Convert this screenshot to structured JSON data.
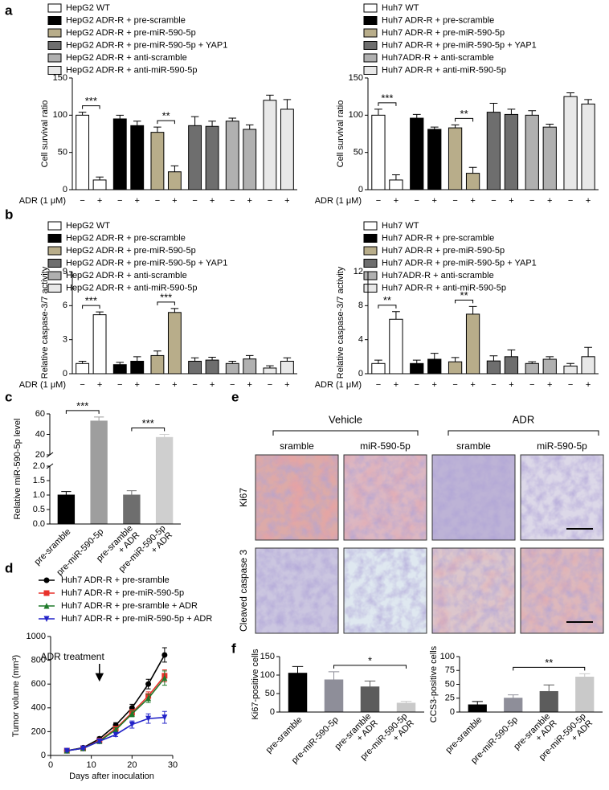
{
  "panel_labels": [
    "a",
    "b",
    "c",
    "d",
    "e",
    "f"
  ],
  "chart_data": [
    {
      "type": "bar",
      "y_label": "Cell survival ratio",
      "x_row_label": "ADR (1 μM)",
      "categories": [
        "−",
        "+"
      ],
      "ylim": [
        0,
        150
      ],
      "yticks": [
        0,
        50,
        100,
        150
      ],
      "series": [
        {
          "name": "HepG2 WT",
          "color": "#ffffff",
          "values": [
            100,
            13
          ],
          "errors": [
            4,
            4
          ]
        },
        {
          "name": "HepG2 ADR-R + pre-scramble",
          "color": "#000000",
          "values": [
            95,
            86
          ],
          "errors": [
            5,
            6
          ]
        },
        {
          "name": "HepG2 ADR-R + pre-miR-590-5p",
          "color": "#b8ad8a",
          "values": [
            77,
            24
          ],
          "errors": [
            7,
            8
          ]
        },
        {
          "name": "HepG2 ADR-R + pre-miR-590-5p + YAP1",
          "color": "#6e6e6e",
          "values": [
            86,
            85
          ],
          "errors": [
            12,
            7
          ]
        },
        {
          "name": "HepG2 ADR-R + anti-scramble",
          "color": "#b0b0b0",
          "values": [
            92,
            81
          ],
          "errors": [
            4,
            6
          ]
        },
        {
          "name": "HepG2 ADR-R + anti-miR-590-5p",
          "color": "#e8e8e8",
          "values": [
            120,
            108
          ],
          "errors": [
            7,
            13
          ]
        }
      ],
      "annotations": [
        {
          "text": "***",
          "series": 0
        },
        {
          "text": "**",
          "series": 2
        }
      ]
    },
    {
      "type": "bar",
      "y_label": "Cell survival ratio",
      "x_row_label": "ADR (1 μM)",
      "categories": [
        "−",
        "+"
      ],
      "ylim": [
        0,
        150
      ],
      "yticks": [
        0,
        50,
        100,
        150
      ],
      "series": [
        {
          "name": "Huh7 WT",
          "color": "#ffffff",
          "values": [
            100,
            13
          ],
          "errors": [
            8,
            7
          ]
        },
        {
          "name": "Huh7 ADR-R + pre-scramble",
          "color": "#000000",
          "values": [
            96,
            81
          ],
          "errors": [
            5,
            3
          ]
        },
        {
          "name": "Huh7 ADR-R + pre-miR-590-5p",
          "color": "#b8ad8a",
          "values": [
            83,
            22
          ],
          "errors": [
            4,
            8
          ]
        },
        {
          "name": "Huh7 ADR-R + pre-miR-590-5p + YAP1",
          "color": "#6e6e6e",
          "values": [
            104,
            101
          ],
          "errors": [
            12,
            7
          ]
        },
        {
          "name": "Huh7ADR-R + anti-scramble",
          "color": "#b0b0b0",
          "values": [
            100,
            84
          ],
          "errors": [
            6,
            4
          ]
        },
        {
          "name": "Huh7 ADR-R + anti-miR-590-5p",
          "color": "#e8e8e8",
          "values": [
            125,
            115
          ],
          "errors": [
            5,
            6
          ]
        }
      ],
      "annotations": [
        {
          "text": "***",
          "series": 0
        },
        {
          "text": "**",
          "series": 2
        }
      ]
    },
    {
      "type": "bar",
      "y_label": "Relative caspase-3/7 activity",
      "x_row_label": "ADR (1 μM)",
      "categories": [
        "−",
        "+"
      ],
      "ylim": [
        0,
        9
      ],
      "yticks": [
        0,
        3,
        6,
        9
      ],
      "series": [
        {
          "name": "HepG2 WT",
          "color": "#ffffff",
          "values": [
            0.9,
            5.2
          ],
          "errors": [
            0.2,
            0.25
          ]
        },
        {
          "name": "HepG2 ADR-R + pre-scramble",
          "color": "#000000",
          "values": [
            0.8,
            1.1
          ],
          "errors": [
            0.2,
            0.4
          ]
        },
        {
          "name": "HepG2 ADR-R + pre-miR-590-5p",
          "color": "#b8ad8a",
          "values": [
            1.6,
            5.4
          ],
          "errors": [
            0.4,
            0.35
          ]
        },
        {
          "name": "HepG2 ADR-R + pre-miR-590-5p + YAP1",
          "color": "#6e6e6e",
          "values": [
            1.1,
            1.2
          ],
          "errors": [
            0.3,
            0.25
          ]
        },
        {
          "name": "HepG2 ADR-R + anti-scramble",
          "color": "#b0b0b0",
          "values": [
            0.9,
            1.3
          ],
          "errors": [
            0.2,
            0.3
          ]
        },
        {
          "name": "HepG2 ADR-R + anti-miR-590-5p",
          "color": "#e8e8e8",
          "values": [
            0.5,
            1.1
          ],
          "errors": [
            0.2,
            0.3
          ]
        }
      ],
      "annotations": [
        {
          "text": "***",
          "series": 0
        },
        {
          "text": "***",
          "series": 2
        }
      ]
    },
    {
      "type": "bar",
      "y_label": "Relative caspase-3/7 activity",
      "x_row_label": "ADR (1 μM)",
      "categories": [
        "−",
        "+"
      ],
      "ylim": [
        0,
        12
      ],
      "yticks": [
        0,
        4,
        8,
        12
      ],
      "series": [
        {
          "name": "Huh7 WT",
          "color": "#ffffff",
          "values": [
            1.2,
            6.4
          ],
          "errors": [
            0.4,
            0.9
          ]
        },
        {
          "name": "Huh7 ADR-R + pre-scramble",
          "color": "#000000",
          "values": [
            1.2,
            1.7
          ],
          "errors": [
            0.4,
            0.7
          ]
        },
        {
          "name": "Huh7 ADR-R + pre-miR-590-5p",
          "color": "#b8ad8a",
          "values": [
            1.4,
            7.0
          ],
          "errors": [
            0.5,
            0.9
          ]
        },
        {
          "name": "Huh7 ADR-R + pre-miR-590-5p + YAP1",
          "color": "#6e6e6e",
          "values": [
            1.5,
            2.0
          ],
          "errors": [
            0.6,
            0.8
          ]
        },
        {
          "name": "Huh7ADR-R + anti-scramble",
          "color": "#b0b0b0",
          "values": [
            1.2,
            1.7
          ],
          "errors": [
            0.2,
            0.3
          ]
        },
        {
          "name": "Huh7 ADR-R + anti-miR-590-5p",
          "color": "#e8e8e8",
          "values": [
            0.9,
            2.0
          ],
          "errors": [
            0.3,
            1.1
          ]
        }
      ],
      "annotations": [
        {
          "text": "**",
          "series": 0
        },
        {
          "text": "**",
          "series": 2
        }
      ]
    },
    {
      "type": "bar",
      "y_label": "Relative miR-590-5p level",
      "categories": [
        [
          "pre-sramble"
        ],
        [
          "pre-miR-590-5p"
        ],
        [
          "pre-sramble",
          "+ ADR"
        ],
        [
          "pre-miR-590-5p",
          "+ ADR"
        ]
      ],
      "values": [
        1.0,
        53,
        1.0,
        37
      ],
      "errors": [
        0.12,
        4,
        0.15,
        3
      ],
      "colors": [
        "#000000",
        "#9e9e9e",
        "#6e6e6e",
        "#cfcfcf"
      ],
      "ylim": [
        0,
        60
      ],
      "ybreak": [
        2,
        20
      ],
      "yticks": [
        {
          "value": 0,
          "label": "0.0"
        },
        0.5,
        {
          "value": 1,
          "label": "1.0"
        },
        1.5,
        {
          "value": 2,
          "label": "2.0"
        },
        20,
        40,
        60
      ],
      "annotations": [
        {
          "text": "***",
          "between": [
            0,
            1
          ]
        },
        {
          "text": "***",
          "between": [
            2,
            3
          ]
        }
      ]
    },
    {
      "type": "line",
      "y_label": "Tumor volume (mm³)",
      "x_label": "Days after inoculation",
      "x": [
        4,
        8,
        12,
        16,
        20,
        24,
        28
      ],
      "xlim": [
        0,
        30
      ],
      "xticks": [
        0,
        10,
        20,
        30
      ],
      "ylim": [
        0,
        1000
      ],
      "yticks": [
        0,
        200,
        400,
        600,
        800,
        1000
      ],
      "series": [
        {
          "name": "Huh7 ADR-R + pre-sramble",
          "color": "#000000",
          "marker": "circle",
          "values": [
            40,
            65,
            140,
            255,
            400,
            600,
            845
          ],
          "errors": [
            8,
            8,
            15,
            20,
            30,
            40,
            60
          ]
        },
        {
          "name": "Huh7 ADR-R + pre-miR-590-5p",
          "color": "#e8322b",
          "marker": "square",
          "values": [
            40,
            60,
            125,
            225,
            360,
            500,
            670
          ],
          "errors": [
            8,
            8,
            12,
            18,
            25,
            35,
            50
          ]
        },
        {
          "name": "Huh7 ADR-R + pre-sramble + ADR",
          "color": "#1f7a2a",
          "marker": "triangle",
          "values": [
            40,
            60,
            120,
            215,
            350,
            480,
            650
          ],
          "errors": [
            8,
            8,
            12,
            18,
            25,
            35,
            60
          ]
        },
        {
          "name": "Huh7 ADR-R + pre-miR-590-5p + ADR",
          "color": "#2323c8",
          "marker": "triangle-down",
          "values": [
            40,
            60,
            120,
            175,
            260,
            310,
            320
          ],
          "errors": [
            8,
            8,
            12,
            15,
            30,
            40,
            50
          ]
        }
      ],
      "annotations": [
        {
          "text": "ADR treatment",
          "x": 12
        }
      ]
    },
    {
      "type": "bar",
      "y_label": "Ki67-positive cells",
      "categories": [
        [
          "pre-sramble"
        ],
        [
          "pre-miR-590-5p"
        ],
        [
          "pre-sramble",
          "+ ADR"
        ],
        [
          "pre-miR-590-5p",
          "+ ADR"
        ]
      ],
      "values": [
        105,
        87,
        68,
        24
      ],
      "errors": [
        18,
        22,
        16,
        5
      ],
      "colors": [
        "#000000",
        "#8e8e99",
        "#5c5c5c",
        "#c9c9c9"
      ],
      "ylim": [
        0,
        150
      ],
      "yticks": [
        0,
        50,
        100,
        150
      ],
      "annotations": [
        {
          "text": "*",
          "between": [
            1,
            3
          ]
        }
      ]
    },
    {
      "type": "bar",
      "y_label": "CCS3-positive cells",
      "categories": [
        [
          "pre-sramble"
        ],
        [
          "pre-miR-590-5p"
        ],
        [
          "pre-sramble",
          "+ ADR"
        ],
        [
          "pre-miR-590-5p",
          "+ ADR"
        ]
      ],
      "values": [
        13,
        25,
        37,
        63
      ],
      "errors": [
        6,
        6,
        12,
        6
      ],
      "colors": [
        "#000000",
        "#8e8e99",
        "#5c5c5c",
        "#c9c9c9"
      ],
      "ylim": [
        0,
        100
      ],
      "yticks": [
        0,
        25,
        50,
        75,
        100
      ],
      "annotations": [
        {
          "text": "**",
          "between": [
            1,
            3
          ]
        }
      ]
    }
  ],
  "figure_e": {
    "groups": [
      "Vehicle",
      "ADR"
    ],
    "columns": [
      "sramble",
      "miR-590-5p",
      "sramble",
      "miR-590-5p"
    ],
    "rows": [
      "Ki67",
      "Cleaved caspase 3"
    ]
  }
}
